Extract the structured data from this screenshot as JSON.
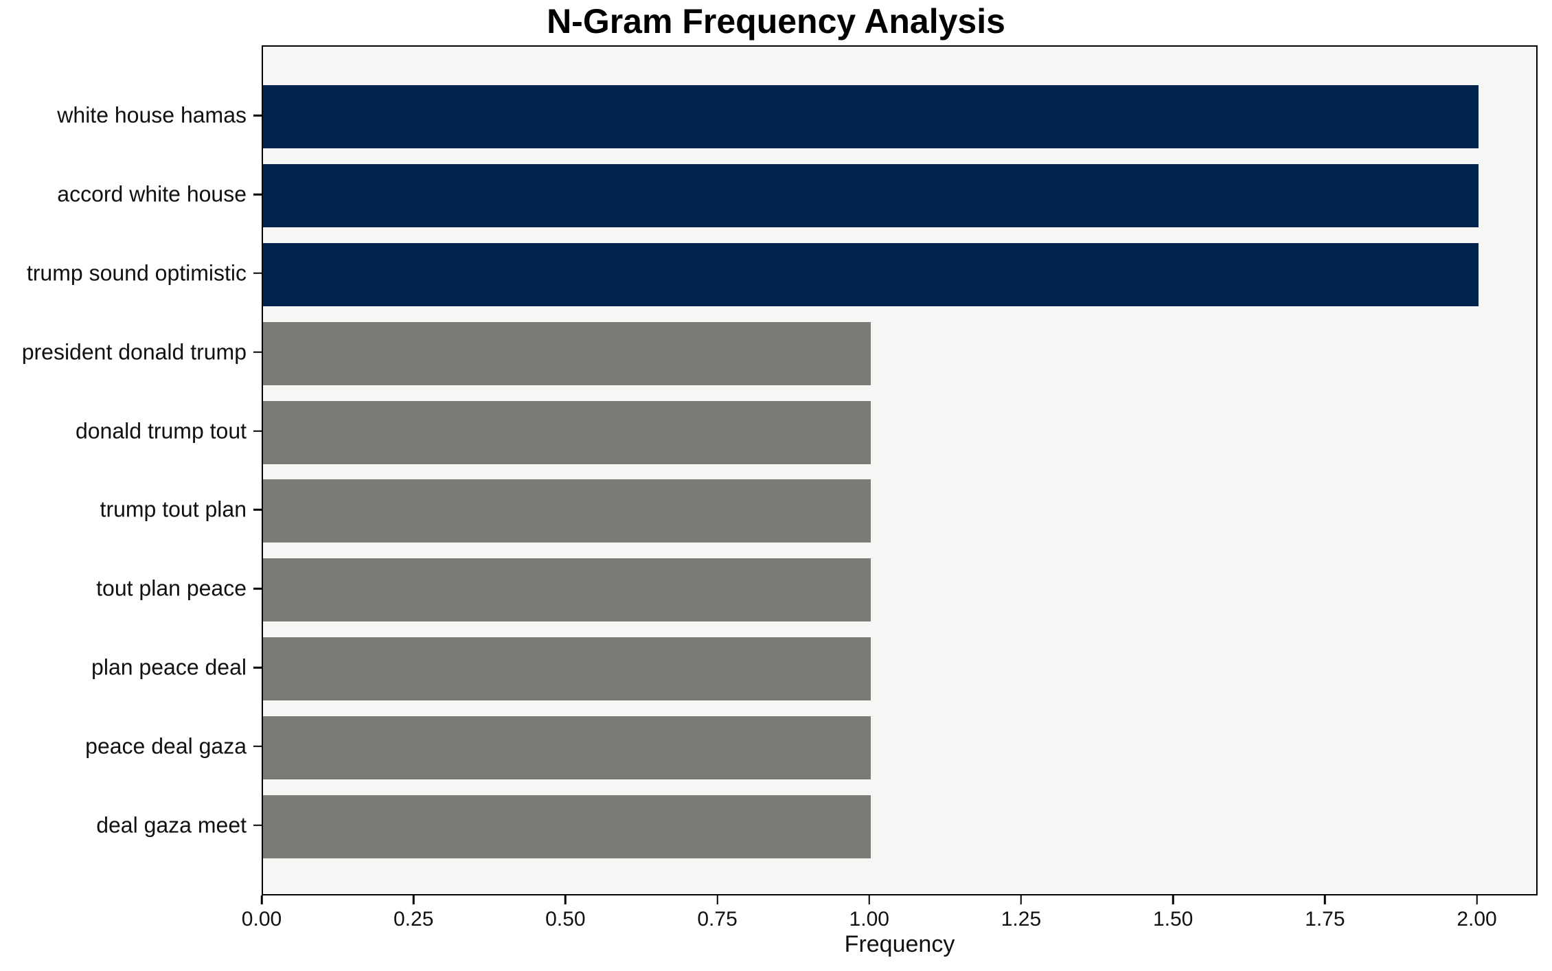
{
  "chart_data": {
    "type": "bar",
    "orientation": "horizontal",
    "title": "N-Gram Frequency Analysis",
    "xlabel": "Frequency",
    "ylabel": "",
    "categories": [
      "white house hamas",
      "accord white house",
      "trump sound optimistic",
      "president donald trump",
      "donald trump tout",
      "trump tout plan",
      "tout plan peace",
      "plan peace deal",
      "peace deal gaza",
      "deal gaza meet"
    ],
    "values": [
      2,
      2,
      2,
      1,
      1,
      1,
      1,
      1,
      1,
      1
    ],
    "bar_colors": [
      "#02234d",
      "#02234d",
      "#02234d",
      "#7b7a77",
      "#7b7a77",
      "#7b7a77",
      "#7b7a77",
      "#7b7a77",
      "#7b7a77",
      "#7b7a77"
    ],
    "xlim": [
      0,
      2.1
    ],
    "xticks": [
      0,
      0.25,
      0.5,
      0.75,
      1.0,
      1.25,
      1.5,
      1.75,
      2.0
    ],
    "xtick_labels": [
      "0.00",
      "0.25",
      "0.50",
      "0.75",
      "1.00",
      "1.25",
      "1.50",
      "1.75",
      "2.00"
    ],
    "grid": false,
    "legend": false,
    "bar_height_frac": 0.8,
    "colors": {
      "highlight_bar": "#02234d",
      "base_bar": "#7b7a77",
      "plot_background": "#f6f6f5",
      "figure_background": "#ffffff",
      "axis": "#000000",
      "text": "#111111"
    }
  }
}
